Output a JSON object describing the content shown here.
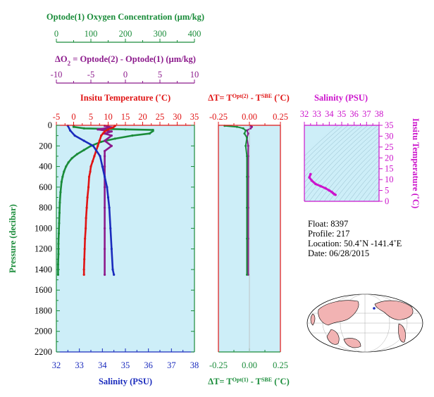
{
  "colors": {
    "oxygen": "#1a8c3a",
    "delta_o2": "#8c1a8c",
    "temperature": "#e01414",
    "salinity": "#1a2bbd",
    "ts_plot": "#cc14cc",
    "panel_fill": "#cdeef8",
    "land": "#f2b3b3"
  },
  "labels": {
    "oxygen_title": "Optode(1) Oxygen Concentration (µm/kg)",
    "delta_prefix": "ΔO",
    "delta_sub": "2",
    "delta_rest": " = Optode(2) - Optode(1)   (µm/kg)",
    "temp_title": "Insitu Temperature (˚C)",
    "salinity_bottom": "Salinity (PSU)",
    "pressure_axis": "Pressure (decibar)",
    "dt_top_prefix": "ΔT= T",
    "dt_top_sup1": "Opt(2)",
    "dt_top_mid": " - T",
    "dt_top_sup2": "SBE",
    "dt_top_suffix": " (˚C)",
    "dt_bottom_prefix": "ΔT= T",
    "dt_bottom_sup1": "Opt(1)",
    "dt_bottom_mid": " - T",
    "dt_bottom_sup2": "SBE",
    "dt_bottom_suffix": " (˚C)",
    "ts_salinity": "Salinity (PSU)",
    "ts_temperature": "Insitu Temperature (˚C)"
  },
  "ticks": {
    "oxygen": [
      "0",
      "100",
      "200",
      "300",
      "400"
    ],
    "delta_o2": [
      "-10",
      "-5",
      "0",
      "5",
      "10"
    ],
    "temperature": [
      "-5",
      "0",
      "5",
      "10",
      "15",
      "20",
      "25",
      "30",
      "35"
    ],
    "salinity": [
      "32",
      "33",
      "34",
      "35",
      "36",
      "37",
      "38"
    ],
    "pressure": [
      "0",
      "200",
      "400",
      "600",
      "800",
      "1000",
      "1200",
      "1400",
      "1600",
      "1800",
      "2000",
      "2200"
    ],
    "dt": [
      "-0.25",
      "0.00",
      "0.25"
    ],
    "ts_salinity": [
      "32",
      "33",
      "34",
      "35",
      "36",
      "37",
      "38"
    ],
    "ts_temperature": [
      "0",
      "5",
      "10",
      "15",
      "20",
      "25",
      "30",
      "35"
    ]
  },
  "info": {
    "float": "Float:  8397",
    "profile": "Profile:  217",
    "location": "Location:  50.4˚N  -141.4˚E",
    "date": "Date:  06/28/2015"
  },
  "footer_text": "",
  "chart_data": {
    "type": "line",
    "ylabel": "Pressure (decibar)",
    "ylim": [
      2200,
      0
    ],
    "series": [
      {
        "name": "Optode(1) Oxygen Concentration (µm/kg)",
        "xlim": [
          0,
          400
        ],
        "points": [
          [
            50,
            5
          ],
          [
            50,
            15
          ],
          [
            80,
            30
          ],
          [
            200,
            40
          ],
          [
            280,
            45
          ],
          [
            280,
            55
          ],
          [
            270,
            80
          ],
          [
            220,
            100
          ],
          [
            170,
            130
          ],
          [
            130,
            160
          ],
          [
            100,
            200
          ],
          [
            80,
            240
          ],
          [
            60,
            280
          ],
          [
            45,
            320
          ],
          [
            35,
            360
          ],
          [
            28,
            400
          ],
          [
            22,
            450
          ],
          [
            18,
            500
          ],
          [
            15,
            550
          ],
          [
            12,
            650
          ],
          [
            10,
            750
          ],
          [
            9,
            850
          ],
          [
            8,
            950
          ],
          [
            7,
            1050
          ],
          [
            6,
            1150
          ],
          [
            6,
            1250
          ],
          [
            5,
            1350
          ],
          [
            5,
            1450
          ]
        ]
      },
      {
        "name": "ΔO2 = Optode(2) - Optode(1)",
        "xlim": [
          -10,
          10
        ],
        "points": [
          [
            -3,
            5
          ],
          [
            -2,
            20
          ],
          [
            -4,
            40
          ],
          [
            -2,
            60
          ],
          [
            -3,
            80
          ],
          [
            -2,
            100
          ],
          [
            -3,
            150
          ],
          [
            -2,
            200
          ],
          [
            -3,
            250
          ],
          [
            -3,
            300
          ],
          [
            -3,
            400
          ],
          [
            -3,
            600
          ],
          [
            -3,
            800
          ],
          [
            -3,
            1000
          ],
          [
            -3,
            1200
          ],
          [
            -3,
            1450
          ]
        ]
      },
      {
        "name": "Insitu Temperature (˚C)",
        "xlim": [
          -5,
          35
        ],
        "points": [
          [
            12,
            5
          ],
          [
            11.5,
            20
          ],
          [
            10,
            40
          ],
          [
            9,
            60
          ],
          [
            8.5,
            80
          ],
          [
            8,
            100
          ],
          [
            7.5,
            150
          ],
          [
            7,
            200
          ],
          [
            6.5,
            250
          ],
          [
            6,
            300
          ],
          [
            5.5,
            350
          ],
          [
            5,
            400
          ],
          [
            4.8,
            450
          ],
          [
            4.5,
            500
          ],
          [
            4.3,
            600
          ],
          [
            4,
            700
          ],
          [
            3.8,
            800
          ],
          [
            3.6,
            900
          ],
          [
            3.5,
            1000
          ],
          [
            3.3,
            1100
          ],
          [
            3.2,
            1200
          ],
          [
            3.1,
            1300
          ],
          [
            3,
            1400
          ],
          [
            3,
            1450
          ]
        ]
      },
      {
        "name": "Salinity (PSU)",
        "xlim": [
          32,
          38
        ],
        "points": [
          [
            32.5,
            5
          ],
          [
            32.6,
            50
          ],
          [
            32.8,
            100
          ],
          [
            33.2,
            150
          ],
          [
            33.6,
            200
          ],
          [
            33.9,
            300
          ],
          [
            34.0,
            400
          ],
          [
            34.1,
            500
          ],
          [
            34.2,
            600
          ],
          [
            34.25,
            700
          ],
          [
            34.3,
            800
          ],
          [
            34.35,
            1000
          ],
          [
            34.4,
            1200
          ],
          [
            34.45,
            1400
          ],
          [
            34.5,
            1450
          ]
        ]
      },
      {
        "name": "ΔT Opt(2) - SBE",
        "xlim": [
          -0.25,
          0.25
        ],
        "points": [
          [
            0.01,
            5
          ],
          [
            0.02,
            15
          ],
          [
            0.01,
            30
          ],
          [
            -0.02,
            50
          ],
          [
            -0.01,
            80
          ],
          [
            -0.02,
            120
          ],
          [
            -0.01,
            200
          ],
          [
            -0.01,
            300
          ],
          [
            -0.01,
            500
          ],
          [
            -0.01,
            800
          ],
          [
            -0.01,
            1100
          ],
          [
            -0.01,
            1450
          ]
        ]
      },
      {
        "name": "ΔT Opt(1) - SBE",
        "xlim": [
          -0.25,
          0.25
        ],
        "points": [
          [
            -0.2,
            5
          ],
          [
            -0.1,
            15
          ],
          [
            -0.05,
            30
          ],
          [
            -0.03,
            50
          ],
          [
            -0.04,
            80
          ],
          [
            -0.02,
            120
          ],
          [
            -0.03,
            200
          ],
          [
            -0.02,
            300
          ],
          [
            -0.02,
            500
          ],
          [
            -0.02,
            800
          ],
          [
            -0.02,
            1100
          ],
          [
            -0.02,
            1450
          ]
        ]
      },
      {
        "name": "T-S",
        "xlim": [
          32,
          38
        ],
        "ylim": [
          0,
          35
        ],
        "points": [
          [
            32.5,
            12.5
          ],
          [
            32.4,
            11
          ],
          [
            32.6,
            9.5
          ],
          [
            32.9,
            8
          ],
          [
            33.3,
            7
          ],
          [
            33.7,
            6
          ],
          [
            34.0,
            5
          ],
          [
            34.2,
            4.3
          ],
          [
            34.3,
            3.8
          ],
          [
            34.4,
            3.3
          ],
          [
            34.5,
            3.0
          ]
        ]
      }
    ]
  }
}
